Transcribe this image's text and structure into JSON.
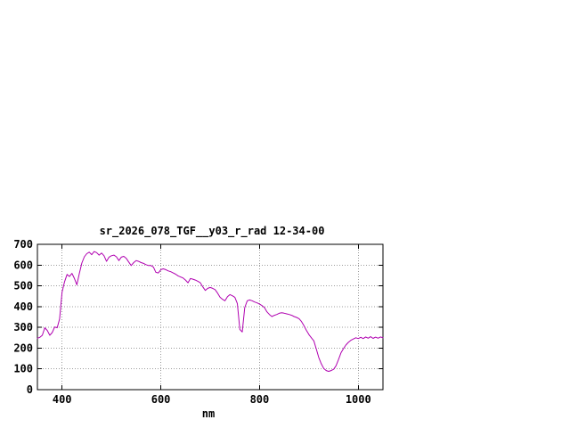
{
  "chart_data": {
    "type": "line",
    "title": "sr_2026_078_TGF__y03_r_rad 12-34-00",
    "xlabel": "nm",
    "ylabel": "",
    "xlim": [
      350,
      1050
    ],
    "ylim": [
      0,
      700
    ],
    "xticks": [
      400,
      600,
      800,
      1000
    ],
    "yticks": [
      0,
      100,
      200,
      300,
      400,
      500,
      600,
      700
    ],
    "grid": true,
    "legend": "none",
    "line_color": "#b000b0",
    "x": [
      350,
      355,
      360,
      365,
      370,
      375,
      380,
      385,
      390,
      395,
      400,
      405,
      410,
      415,
      420,
      425,
      430,
      435,
      440,
      445,
      450,
      455,
      460,
      465,
      470,
      475,
      480,
      485,
      490,
      495,
      500,
      505,
      510,
      515,
      520,
      525,
      530,
      535,
      540,
      545,
      550,
      555,
      560,
      565,
      570,
      575,
      580,
      585,
      590,
      595,
      600,
      605,
      610,
      615,
      620,
      625,
      630,
      635,
      640,
      645,
      650,
      655,
      660,
      665,
      670,
      675,
      680,
      685,
      690,
      695,
      700,
      705,
      710,
      715,
      720,
      725,
      730,
      735,
      740,
      745,
      750,
      755,
      760,
      765,
      770,
      775,
      780,
      785,
      790,
      795,
      800,
      805,
      810,
      815,
      820,
      825,
      830,
      835,
      840,
      845,
      850,
      855,
      860,
      865,
      870,
      875,
      880,
      885,
      890,
      895,
      900,
      905,
      910,
      915,
      920,
      925,
      930,
      935,
      940,
      945,
      950,
      955,
      960,
      965,
      970,
      975,
      980,
      985,
      990,
      995,
      1000,
      1005,
      1010,
      1015,
      1020,
      1025,
      1030,
      1035,
      1040,
      1045,
      1050
    ],
    "values": [
      248,
      252,
      262,
      298,
      285,
      262,
      275,
      302,
      298,
      340,
      470,
      520,
      555,
      545,
      560,
      535,
      505,
      560,
      610,
      640,
      655,
      662,
      650,
      665,
      660,
      648,
      658,
      645,
      618,
      638,
      645,
      648,
      640,
      622,
      638,
      642,
      632,
      615,
      598,
      612,
      622,
      618,
      612,
      608,
      602,
      598,
      598,
      590,
      565,
      562,
      578,
      582,
      578,
      572,
      568,
      562,
      556,
      548,
      543,
      538,
      528,
      515,
      535,
      532,
      528,
      522,
      515,
      495,
      478,
      488,
      492,
      488,
      482,
      465,
      445,
      435,
      428,
      448,
      458,
      452,
      445,
      415,
      290,
      278,
      395,
      428,
      432,
      428,
      422,
      418,
      412,
      405,
      395,
      375,
      362,
      352,
      358,
      362,
      368,
      370,
      368,
      365,
      362,
      358,
      352,
      348,
      342,
      328,
      308,
      285,
      265,
      250,
      235,
      195,
      155,
      125,
      102,
      92,
      88,
      92,
      98,
      115,
      145,
      178,
      198,
      215,
      228,
      238,
      244,
      250,
      246,
      252,
      246,
      254,
      248,
      255,
      247,
      253,
      248,
      254,
      250
    ]
  }
}
